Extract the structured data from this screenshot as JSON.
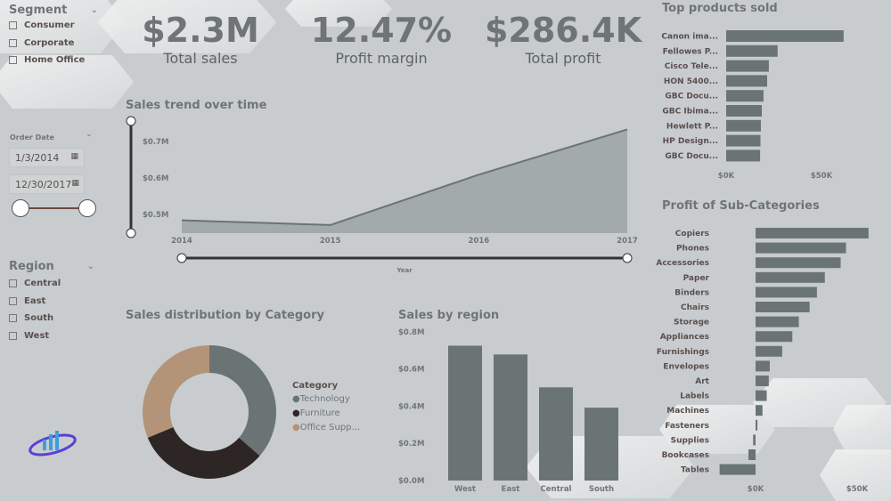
{
  "segment": {
    "title": "Segment",
    "items": [
      "Consumer",
      "Corporate",
      "Home Office"
    ]
  },
  "order_date": {
    "title": "Order Date",
    "start": "1/3/2014",
    "end": "12/30/2017"
  },
  "region_slicer": {
    "title": "Region",
    "items": [
      "Central",
      "East",
      "South",
      "West"
    ]
  },
  "kpis": [
    {
      "value": "$2.3M",
      "label": "Total sales"
    },
    {
      "value": "12.47%",
      "label": "Profit margin"
    },
    {
      "value": "$286.4K",
      "label": "Total profit"
    }
  ],
  "colors": {
    "bar": "#6b7475",
    "technology": "#6b7475",
    "furniture": "#2e2624",
    "office_supplies": "#b39478",
    "background": "#c8ccce"
  },
  "chart_data": [
    {
      "id": "trend",
      "type": "area",
      "title": "Sales trend over time",
      "xlabel": "Year",
      "x": [
        "2014",
        "2015",
        "2016",
        "2017"
      ],
      "values": [
        0.484,
        0.471,
        0.609,
        0.733
      ],
      "yticks": [
        "$0.5M",
        "$0.6M",
        "$0.7M"
      ],
      "ytick_values": [
        0.5,
        0.6,
        0.7
      ],
      "ylim": [
        0.45,
        0.75
      ]
    },
    {
      "id": "category",
      "type": "pie",
      "title": "Sales distribution by Category",
      "legend_title": "Category",
      "legend_placement": "right",
      "categories": [
        "Technology",
        "Furniture",
        "Office Supp..."
      ],
      "values": [
        36.4,
        32.3,
        31.3
      ]
    },
    {
      "id": "region",
      "type": "bar",
      "title": "Sales by region",
      "categories": [
        "West",
        "East",
        "Central",
        "South"
      ],
      "values": [
        0.725,
        0.678,
        0.501,
        0.392
      ],
      "yticks": [
        "$0.0M",
        "$0.2M",
        "$0.4M",
        "$0.6M",
        "$0.8M"
      ],
      "ylim": [
        0,
        0.8
      ]
    },
    {
      "id": "products",
      "type": "bar",
      "orientation": "horizontal",
      "title": "Top products sold",
      "categories": [
        "Canon ima...",
        "Fellowes P...",
        "Cisco Tele...",
        "HON 5400...",
        "GBC Docu...",
        "GBC Ibima...",
        "Hewlett P...",
        "HP Design...",
        "GBC Docu..."
      ],
      "values": [
        61.6,
        27.0,
        22.4,
        21.5,
        19.6,
        18.7,
        18.2,
        18.0,
        17.8
      ],
      "xticks": [
        "$0K",
        "$50K"
      ],
      "xtick_values": [
        0,
        50
      ]
    },
    {
      "id": "subcats",
      "type": "bar",
      "orientation": "horizontal",
      "title": "Profit of Sub-Categories",
      "categories": [
        "Copiers",
        "Phones",
        "Accessories",
        "Paper",
        "Binders",
        "Chairs",
        "Storage",
        "Appliances",
        "Furnishings",
        "Envelopes",
        "Art",
        "Labels",
        "Machines",
        "Fasteners",
        "Supplies",
        "Bookcases",
        "Tables"
      ],
      "values": [
        55.6,
        44.5,
        41.9,
        34.1,
        30.2,
        26.6,
        21.3,
        18.1,
        13.1,
        7.0,
        6.5,
        5.5,
        3.4,
        0.9,
        -1.2,
        -3.5,
        -17.7
      ],
      "xticks": [
        "$0K",
        "$50K"
      ],
      "xtick_values": [
        0,
        50
      ]
    }
  ]
}
